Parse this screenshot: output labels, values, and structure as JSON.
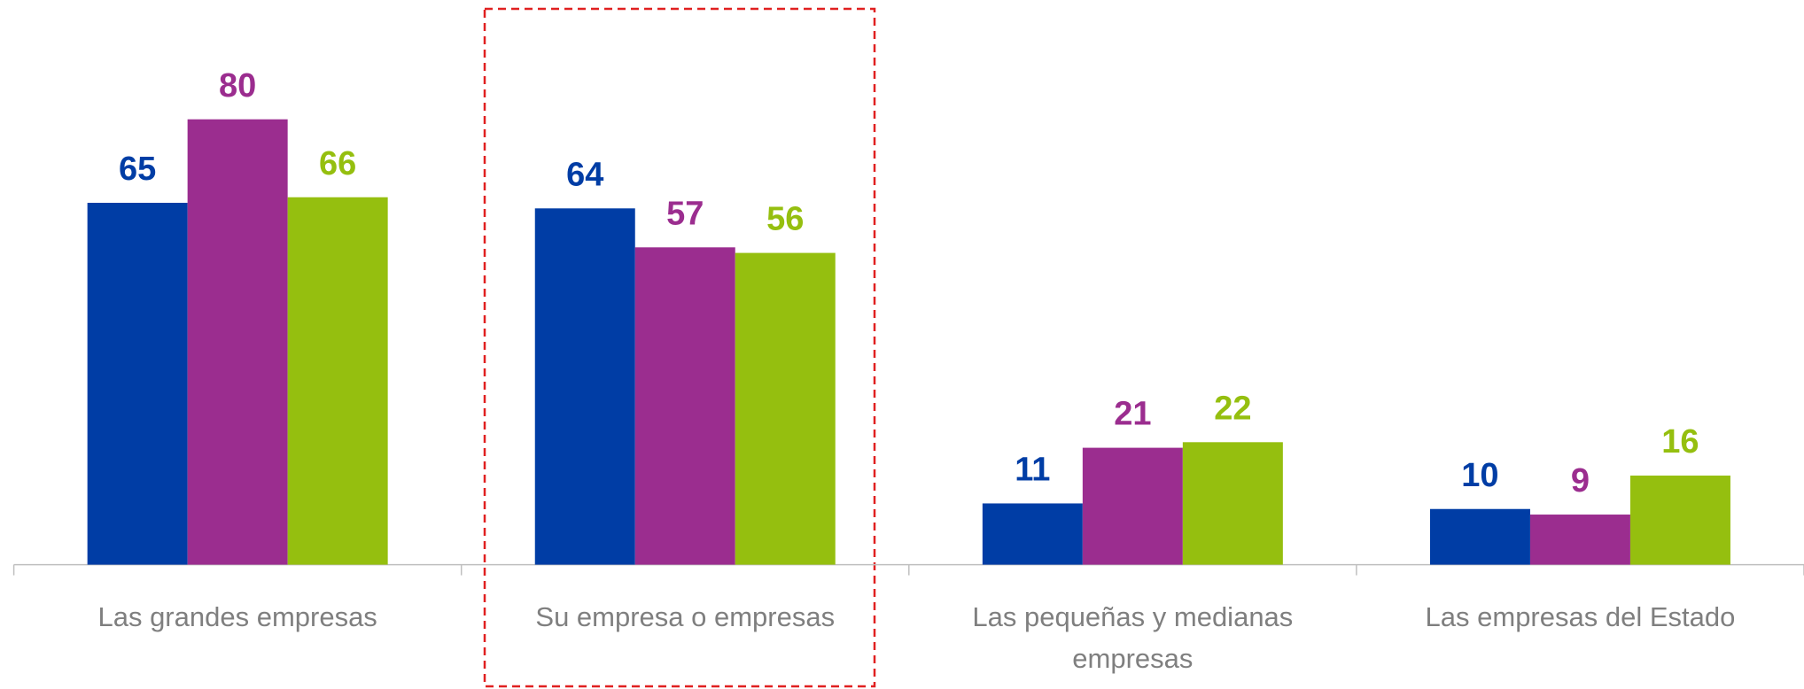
{
  "chart_data": {
    "type": "bar",
    "categories": [
      "Las grandes empresas",
      "Su empresa o empresas",
      "Las pequeñas y medianas empresas",
      "Las empresas del Estado"
    ],
    "series": [
      {
        "color": "#003da5",
        "values": [
          65,
          64,
          11,
          10
        ]
      },
      {
        "color": "#9b2d8f",
        "values": [
          80,
          57,
          21,
          9
        ]
      },
      {
        "color": "#95bf0f",
        "values": [
          66,
          56,
          22,
          16
        ]
      }
    ],
    "ylim": [
      0,
      100
    ]
  }
}
